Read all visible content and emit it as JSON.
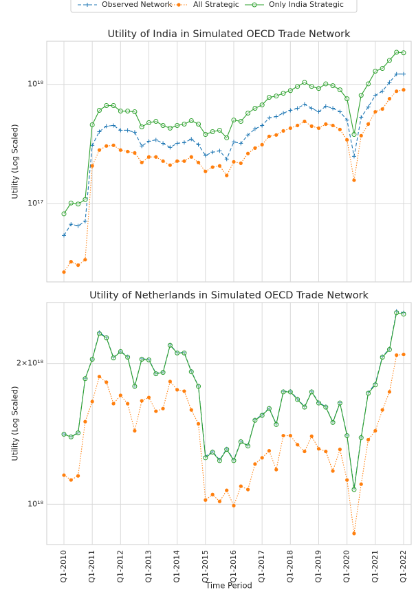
{
  "chart_data": [
    {
      "type": "line",
      "title": "Utility of India in Simulated OECD Trade Network",
      "ylabel": "Utility (Log Scaled)",
      "yscale": "log",
      "ylim": [
        2.2e+16,
        2.3e+18
      ],
      "yticks": [
        {
          "value": 1e+17,
          "label": "10¹⁷"
        },
        {
          "value": 1e+18,
          "label": "10¹⁸"
        }
      ],
      "grid": true,
      "legend": "upper center",
      "series": [
        {
          "name": "Observed Network",
          "color": "#1f77b4",
          "linestyle": "dashed",
          "marker": "plus",
          "values": [
            5.4e+16,
            6.7e+16,
            6.5e+16,
            7.1e+16,
            3.08e+17,
            4.01e+17,
            4.46e+17,
            4.52e+17,
            4.12e+17,
            4.12e+17,
            3.96e+17,
            3.04e+17,
            3.33e+17,
            3.42e+17,
            3.2e+17,
            2.96e+17,
            3.2e+17,
            3.25e+17,
            3.47e+17,
            3.12e+17,
            2.53e+17,
            2.7e+17,
            2.77e+17,
            2.36e+17,
            3.29e+17,
            3.2e+17,
            3.76e+17,
            4.23e+17,
            4.52e+17,
            5.23e+17,
            5.37e+17,
            5.74e+17,
            6.05e+17,
            6.3e+17,
            6.81e+17,
            6.3e+17,
            5.89e+17,
            6.55e+17,
            6.3e+17,
            5.89e+17,
            5.02e+17,
            2.49e+17,
            5.3e+17,
            6.46e+17,
            8.09e+17,
            8.76e+17,
            1.04e+18,
            1.22e+18,
            1.22e+18
          ]
        },
        {
          "name": "All Strategic",
          "color": "#ff7f0e",
          "linestyle": "dotted",
          "marker": "dot",
          "values": [
            2.66e+16,
            3.25e+16,
            3.04e+16,
            3.38e+16,
            2.07e+17,
            2.81e+17,
            3.04e+17,
            3.08e+17,
            2.81e+17,
            2.73e+17,
            2.66e+17,
            2.21e+17,
            2.46e+17,
            2.46e+17,
            2.27e+17,
            2.1e+17,
            2.27e+17,
            2.27e+17,
            2.46e+17,
            2.21e+17,
            1.86e+17,
            2.02e+17,
            2.07e+17,
            1.72e+17,
            2.24e+17,
            2.18e+17,
            2.63e+17,
            2.92e+17,
            3.12e+17,
            3.66e+17,
            3.76e+17,
            4.07e+17,
            4.29e+17,
            4.52e+17,
            4.89e+17,
            4.46e+17,
            4.29e+17,
            4.64e+17,
            4.52e+17,
            4.18e+17,
            3.42e+17,
            1.57e+17,
            3.71e+17,
            4.64e+17,
            5.89e+17,
            6.21e+17,
            7.57e+17,
            8.76e+17,
            9e+17
          ]
        },
        {
          "name": "Only India Strategic",
          "color": "#2ca02c",
          "linestyle": "solid",
          "marker": "open-circle",
          "values": [
            8.2e+16,
            1.01e+17,
            9.9e+16,
            1.08e+17,
            4.58e+17,
            6.05e+17,
            6.64e+17,
            6.64e+17,
            5.97e+17,
            5.97e+17,
            5.89e+17,
            4.4e+17,
            4.77e+17,
            4.89e+17,
            4.52e+17,
            4.29e+17,
            4.52e+17,
            4.64e+17,
            4.96e+17,
            4.64e+17,
            3.8e+17,
            4.01e+17,
            4.12e+17,
            3.56e+17,
            5.02e+17,
            4.89e+17,
            5.74e+17,
            6.3e+17,
            6.72e+17,
            7.78e+17,
            7.98e+17,
            8.42e+17,
            8.87e+17,
            9.61e+17,
            1.04e+18,
            9.61e+17,
            9.24e+17,
            1.01e+18,
            9.75e+17,
            9e+17,
            7.57e+17,
            3.8e+17,
            8.09e+17,
            1.01e+18,
            1.29e+18,
            1.36e+18,
            1.59e+18,
            1.86e+18,
            1.84e+18
          ]
        }
      ]
    },
    {
      "type": "line",
      "title": "Utility of Netherlands in Simulated OECD Trade Network",
      "ylabel": "Utility (Log Scaled)",
      "xlabel": "Time Period",
      "yscale": "log",
      "ylim": [
        8.2e+17,
        2.7e+18
      ],
      "yticks": [
        {
          "value": 1e+18,
          "label": "10¹⁸"
        },
        {
          "value": 2e+18,
          "label": "2×10¹⁸"
        }
      ],
      "grid": true,
      "categories": [
        "Q1-2010",
        null,
        null,
        null,
        "Q1-2011",
        null,
        null,
        null,
        "Q1-2012",
        null,
        null,
        null,
        "Q1-2013",
        null,
        null,
        null,
        "Q1-2014",
        null,
        null,
        null,
        "Q1-2015",
        null,
        null,
        null,
        "Q1-2016",
        null,
        null,
        null,
        "Q1-2017",
        null,
        null,
        null,
        "Q1-2018",
        null,
        null,
        null,
        "Q1-2019",
        null,
        null,
        null,
        "Q1-2020",
        null,
        null,
        null,
        "Q1-2021",
        null,
        null,
        null,
        "Q1-2022"
      ],
      "series": [
        {
          "name": "Observed Network",
          "color": "#1f77b4",
          "linestyle": "dashed",
          "marker": "plus",
          "values": [
            1.414e+18,
            1.395e+18,
            1.423e+18,
            1.858e+18,
            2.045e+18,
            2.33e+18,
            2.275e+18,
            2.06e+18,
            2.125e+18,
            2.068e+18,
            1.79e+18,
            2.047e+18,
            2.04e+18,
            1.905e+18,
            1.918e+18,
            2.192e+18,
            2.11e+18,
            2.11e+18,
            1.925e+18,
            1.79e+18,
            1.266e+18,
            1.296e+18,
            1.244e+18,
            1.314e+18,
            1.244e+18,
            1.364e+18,
            1.336e+18,
            1.516e+18,
            1.553e+18,
            1.606e+18,
            1.485e+18,
            1.743e+18,
            1.743e+18,
            1.68e+18,
            1.617e+18,
            1.743e+18,
            1.65e+18,
            1.617e+18,
            1.5e+18,
            1.65e+18,
            1.405e+18,
            1.082e+18,
            1.392e+18,
            1.732e+18,
            1.812e+18,
            2.07e+18,
            2.15e+18,
            2.586e+18,
            2.568e+18
          ]
        },
        {
          "name": "All Strategic",
          "color": "#ff7f0e",
          "linestyle": "dotted",
          "marker": "dot",
          "values": [
            1.154e+18,
            1.127e+18,
            1.15e+18,
            1.502e+18,
            1.658e+18,
            1.875e+18,
            1.824e+18,
            1.641e+18,
            1.71e+18,
            1.641e+18,
            1.436e+18,
            1.664e+18,
            1.692e+18,
            1.581e+18,
            1.602e+18,
            1.83e+18,
            1.757e+18,
            1.745e+18,
            1.591e+18,
            1.486e+18,
            1.021e+18,
            1.049e+18,
            1.014e+18,
            1.071e+18,
            9.93e+17,
            1.093e+18,
            1.075e+18,
            1.219e+18,
            1.257e+18,
            1.301e+18,
            1.186e+18,
            1.402e+18,
            1.402e+18,
            1.341e+18,
            1.297e+18,
            1.398e+18,
            1.314e+18,
            1.297e+18,
            1.178e+18,
            1.31e+18,
            1.127e+18,
            8.66e+17,
            1.104e+18,
            1.374e+18,
            1.436e+18,
            1.591e+18,
            1.739e+18,
            2.084e+18,
            2.091e+18
          ]
        },
        {
          "name": "Only India Strategic",
          "color": "#2ca02c",
          "linestyle": "solid",
          "marker": "open-circle",
          "values": [
            1.412e+18,
            1.393e+18,
            1.421e+18,
            1.856e+18,
            2.042e+18,
            2.317e+18,
            2.27e+18,
            2.056e+18,
            2.12e+18,
            2.063e+18,
            1.787e+18,
            2.042e+18,
            2.035e+18,
            1.901e+18,
            1.914e+18,
            2.187e+18,
            2.106e+18,
            2.106e+18,
            1.92e+18,
            1.787e+18,
            1.257e+18,
            1.292e+18,
            1.24e+18,
            1.31e+18,
            1.24e+18,
            1.36e+18,
            1.332e+18,
            1.512e+18,
            1.549e+18,
            1.602e+18,
            1.481e+18,
            1.739e+18,
            1.739e+18,
            1.675e+18,
            1.613e+18,
            1.739e+18,
            1.646e+18,
            1.613e+18,
            1.496e+18,
            1.646e+18,
            1.402e+18,
            1.075e+18,
            1.388e+18,
            1.727e+18,
            1.8e+18,
            2.063e+18,
            2.142e+18,
            2.568e+18,
            2.55e+18
          ]
        }
      ]
    }
  ]
}
